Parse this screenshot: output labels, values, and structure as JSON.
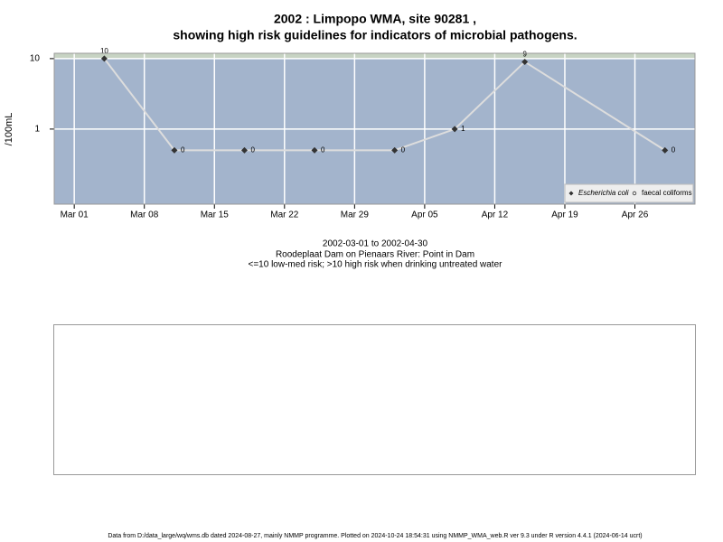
{
  "chart_data": {
    "type": "line",
    "title": [
      "2002 : Limpopo WMA, site 90281 ,",
      "showing high risk guidelines for indicators of microbial pathogens."
    ],
    "y_label": "/100mL",
    "x": [
      "2002-03-04",
      "2002-03-11",
      "2002-03-18",
      "2002-03-25",
      "2002-04-02",
      "2002-04-08",
      "2002-04-15",
      "2002-04-29"
    ],
    "series": [
      {
        "name": "Escherichia coli",
        "color": "#333333",
        "values": [
          10,
          0.5,
          0.5,
          0.5,
          0.5,
          1,
          9,
          0.5
        ],
        "value_labels": [
          "10",
          "0",
          "0",
          "0",
          "0",
          "1",
          "9",
          "0"
        ]
      },
      {
        "name": "faecal coliforms",
        "color": "#333333",
        "values": [
          null,
          null,
          null,
          null,
          null,
          null,
          null,
          null
        ]
      }
    ],
    "line_color": "#dddddd",
    "background": "#a3b4cc",
    "guideline": 10,
    "guideline_color": "#c7d3c3",
    "log_y": true,
    "grid": true,
    "legend": "bottom-right",
    "xlim": [
      "2002-02-27",
      "2002-05-02"
    ],
    "xticks": [
      {
        "value": "2002-03-01",
        "label": "Mar 01"
      },
      {
        "value": "2002-03-08",
        "label": "Mar 08"
      },
      {
        "value": "2002-03-15",
        "label": "Mar 15"
      },
      {
        "value": "2002-03-22",
        "label": "Mar 22"
      },
      {
        "value": "2002-03-29",
        "label": "Mar 29"
      },
      {
        "value": "2002-04-05",
        "label": "Apr 05"
      },
      {
        "value": "2002-04-12",
        "label": "Apr 12"
      },
      {
        "value": "2002-04-19",
        "label": "Apr 19"
      },
      {
        "value": "2002-04-26",
        "label": "Apr 26"
      }
    ],
    "ylim": [
      0.086,
      11.9
    ],
    "yticks": [
      1,
      10
    ],
    "notes": [
      "2002-03-01 to 2002-04-30",
      "Roodeplaat Dam on Pienaars River: Point in Dam",
      "<=10 low-med risk; >10 high risk when drinking untreated water"
    ],
    "footer": "Data from D:/data_large/wq/wms.db dated 2024-08-27, mainly NMMP programme. Plotted on 2024-10-24 18:54:31 using NMMP_WMA_web.R ver 9.3 under R version 4.4.1 (2024-06-14 ucrt)"
  }
}
